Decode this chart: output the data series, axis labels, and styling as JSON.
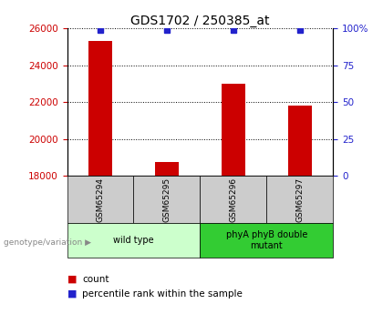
{
  "title": "GDS1702 / 250385_at",
  "samples": [
    "GSM65294",
    "GSM65295",
    "GSM65296",
    "GSM65297"
  ],
  "counts": [
    25300,
    18750,
    23000,
    21800
  ],
  "percentiles": [
    99,
    99,
    99,
    99
  ],
  "ylim_left": [
    18000,
    26000
  ],
  "ylim_right": [
    0,
    100
  ],
  "yticks_left": [
    18000,
    20000,
    22000,
    24000,
    26000
  ],
  "yticks_right": [
    0,
    25,
    50,
    75,
    100
  ],
  "bar_color": "#cc0000",
  "square_color": "#2222cc",
  "groups": [
    {
      "label": "wild type",
      "start": 0,
      "end": 2
    },
    {
      "label": "phyA phyB double\nmutant",
      "start": 2,
      "end": 4
    }
  ],
  "group_bg_light": "#ccffcc",
  "group_bg_dark": "#33cc33",
  "group_colors": [
    "#ccffcc",
    "#33cc33"
  ],
  "sample_cell_color": "#cccccc",
  "legend_count_label": "count",
  "legend_pct_label": "percentile rank within the sample",
  "genotype_label": "genotype/variation",
  "title_fontsize": 10,
  "tick_fontsize": 7.5,
  "sample_fontsize": 6.5,
  "group_fontsize": 7,
  "legend_fontsize": 7.5
}
